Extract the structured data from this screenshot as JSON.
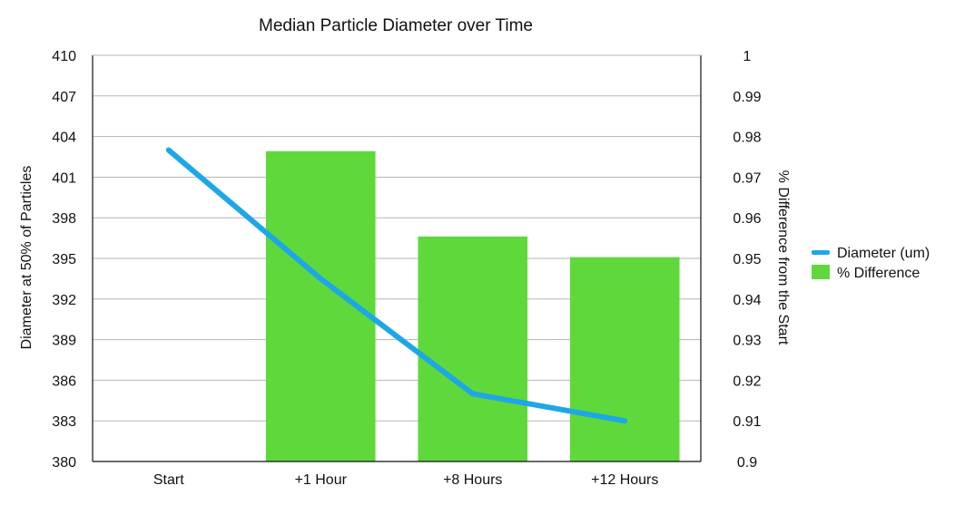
{
  "chart_data": {
    "type": "bar",
    "title": "Median Particle Diameter over Time",
    "categories": [
      "Start",
      "+1 Hour",
      "+8 Hours",
      "+12 Hours"
    ],
    "series": [
      {
        "name": "Diameter (um)",
        "type": "line",
        "axis": "left",
        "color": "#1ea7e6",
        "values": [
          403,
          393.5,
          385,
          383
        ]
      },
      {
        "name": "% Difference",
        "type": "bar",
        "axis": "right",
        "color": "#5fd83c",
        "values": [
          null,
          0.9764,
          0.9554,
          0.9503
        ]
      }
    ],
    "y_left": {
      "label": "Diameter at 50% of Particles",
      "range": [
        380,
        410
      ],
      "ticks": [
        "380",
        "383",
        "386",
        "389",
        "392",
        "395",
        "398",
        "401",
        "404",
        "407",
        "410"
      ]
    },
    "y_right": {
      "label": "% Difference from the Start",
      "range": [
        0.9,
        1
      ],
      "ticks": [
        "0.9",
        "0.91",
        "0.92",
        "0.93",
        "0.94",
        "0.95",
        "0.96",
        "0.97",
        "0.98",
        "0.99",
        "1"
      ]
    },
    "grid": true,
    "legend_position": "right"
  }
}
